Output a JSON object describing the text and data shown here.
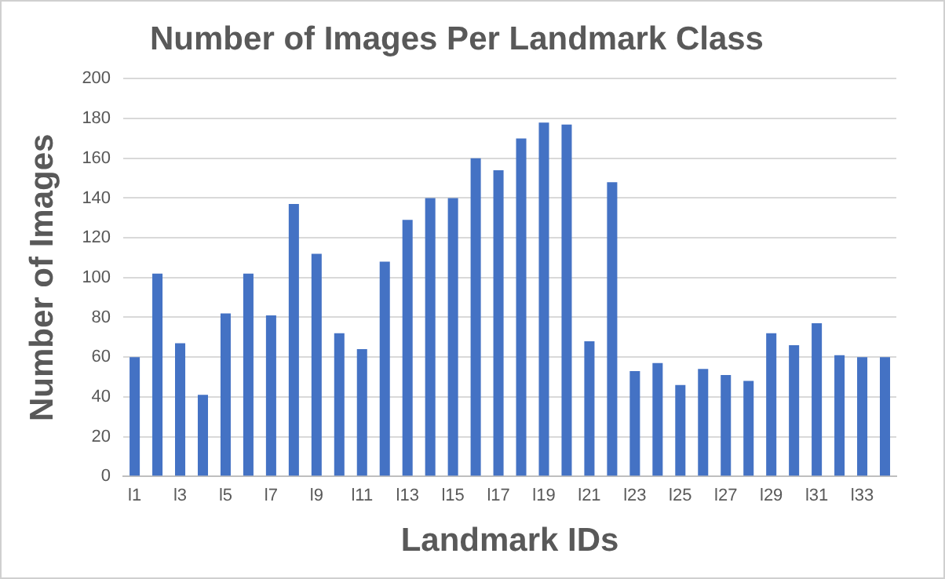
{
  "chart_data": {
    "type": "bar",
    "title": "Number of Images Per Landmark Class",
    "xlabel": "Landmark IDs",
    "ylabel": "Number of Images",
    "categories": [
      "l1",
      null,
      "l3",
      null,
      "l5",
      null,
      "l7",
      null,
      "l9",
      null,
      "l11",
      null,
      "l13",
      null,
      "l15",
      null,
      "l17",
      null,
      "l19",
      null,
      "l21",
      null,
      "l23",
      null,
      "l25",
      null,
      "l27",
      null,
      "l29",
      null,
      "l31",
      null,
      "l33",
      null
    ],
    "values": [
      60,
      102,
      67,
      41,
      82,
      102,
      81,
      137,
      112,
      72,
      64,
      108,
      129,
      140,
      140,
      160,
      154,
      170,
      178,
      177,
      68,
      148,
      53,
      57,
      46,
      54,
      51,
      48,
      72,
      66,
      77,
      61,
      60,
      60
    ],
    "color": "#4472c4",
    "ylim": [
      0,
      200
    ],
    "yticks": [
      0,
      20,
      40,
      60,
      80,
      100,
      120,
      140,
      160,
      180,
      200
    ],
    "grid": "y",
    "legend": false
  }
}
